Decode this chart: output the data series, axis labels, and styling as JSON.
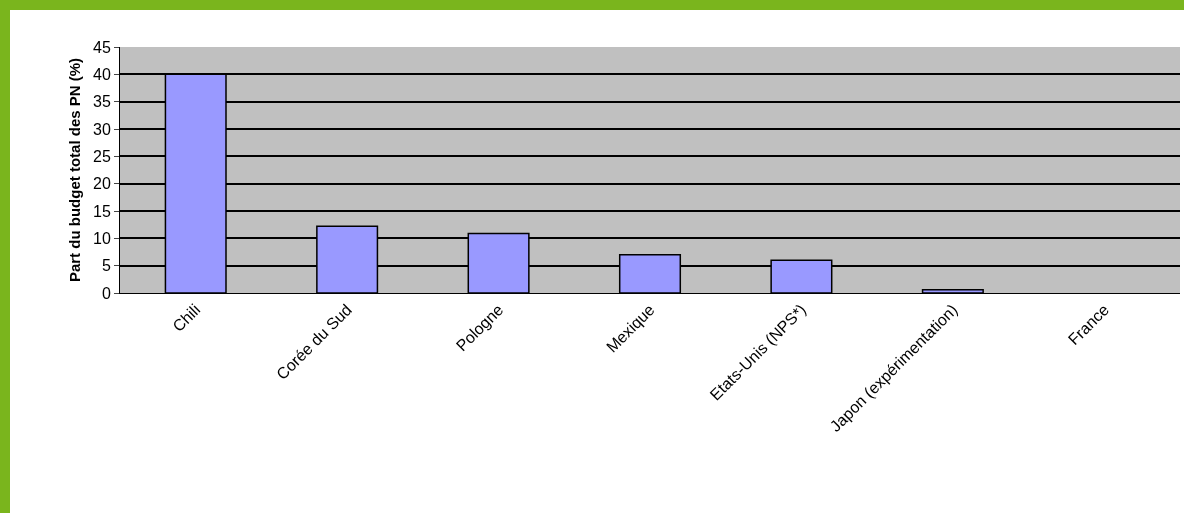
{
  "chart_data": {
    "type": "bar",
    "ylabel": "Part du budget total des PN (%)",
    "categories": [
      "Chili",
      "Corée du Sud",
      "Pologne",
      "Mexique",
      "Etats-Unis (NPS*)",
      "Japon (expérimentation)",
      "France"
    ],
    "values": [
      40,
      12.2,
      10.9,
      7,
      6,
      0.6,
      null
    ],
    "color": "#9999ff",
    "ylim": [
      0,
      45
    ],
    "yticks": [
      0,
      5,
      10,
      15,
      20,
      25,
      30,
      35,
      40,
      45
    ],
    "grid": "y",
    "legend": false
  }
}
